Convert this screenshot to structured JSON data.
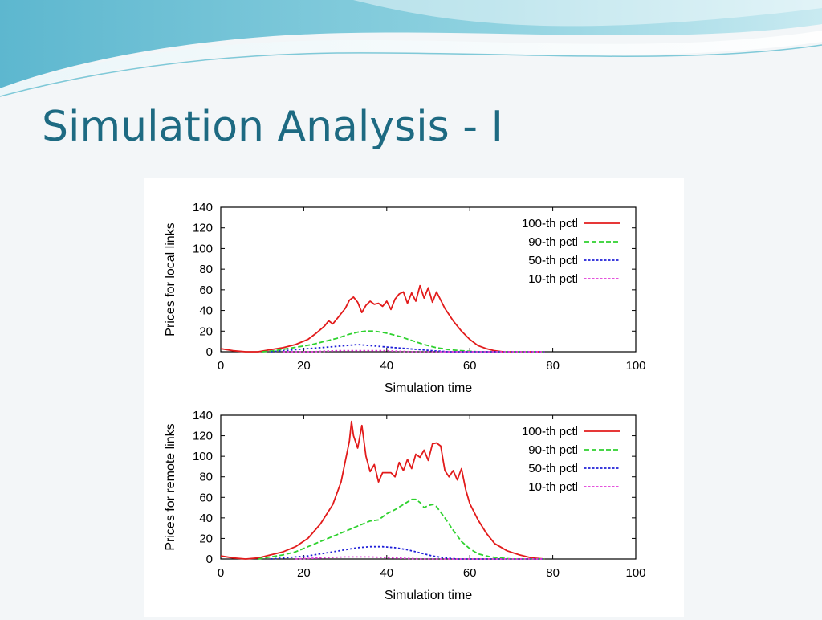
{
  "slide": {
    "title": "Simulation Analysis - I",
    "background_color": "#f3f6f8",
    "title_color": "#1d6a82",
    "banner_colors": [
      "#7fc9d8",
      "#b9e3ec",
      "#e7f5f8"
    ]
  },
  "chart_data": [
    {
      "type": "line",
      "xlabel": "Simulation time",
      "ylabel": "Prices for local links",
      "xlim": [
        0,
        100
      ],
      "ylim": [
        0,
        140
      ],
      "xticks": [
        0,
        20,
        40,
        60,
        80,
        100
      ],
      "yticks": [
        0,
        20,
        40,
        60,
        80,
        100,
        120,
        140
      ],
      "grid": false,
      "legend_position": "top-right",
      "series": [
        {
          "name": "100-th pctl",
          "color": "#e21b1b",
          "dash": "solid",
          "points": [
            [
              0,
              3
            ],
            [
              3,
              1
            ],
            [
              6,
              0
            ],
            [
              9,
              0
            ],
            [
              12,
              2
            ],
            [
              15,
              4
            ],
            [
              18,
              7
            ],
            [
              21,
              12
            ],
            [
              23,
              18
            ],
            [
              25,
              25
            ],
            [
              26,
              30
            ],
            [
              27,
              27
            ],
            [
              28,
              32
            ],
            [
              30,
              42
            ],
            [
              31,
              50
            ],
            [
              32,
              53
            ],
            [
              33,
              48
            ],
            [
              34,
              38
            ],
            [
              35,
              45
            ],
            [
              36,
              49
            ],
            [
              37,
              46
            ],
            [
              38,
              47
            ],
            [
              39,
              44
            ],
            [
              40,
              49
            ],
            [
              41,
              41
            ],
            [
              42,
              51
            ],
            [
              43,
              56
            ],
            [
              44,
              58
            ],
            [
              45,
              47
            ],
            [
              46,
              57
            ],
            [
              47,
              49
            ],
            [
              48,
              64
            ],
            [
              49,
              52
            ],
            [
              50,
              62
            ],
            [
              51,
              48
            ],
            [
              52,
              58
            ],
            [
              54,
              42
            ],
            [
              56,
              30
            ],
            [
              58,
              20
            ],
            [
              60,
              12
            ],
            [
              62,
              6
            ],
            [
              64,
              3
            ],
            [
              66,
              1
            ],
            [
              68,
              0
            ],
            [
              78,
              0
            ]
          ]
        },
        {
          "name": "90-th pctl",
          "color": "#2ed12e",
          "dash": "dashed",
          "points": [
            [
              10,
              0
            ],
            [
              13,
              1
            ],
            [
              16,
              3
            ],
            [
              19,
              5
            ],
            [
              22,
              7
            ],
            [
              25,
              10
            ],
            [
              28,
              13
            ],
            [
              31,
              17
            ],
            [
              33,
              19
            ],
            [
              35,
              20
            ],
            [
              37,
              20
            ],
            [
              40,
              18
            ],
            [
              43,
              15
            ],
            [
              46,
              11
            ],
            [
              49,
              7
            ],
            [
              52,
              4
            ],
            [
              55,
              2
            ],
            [
              58,
              1
            ],
            [
              62,
              0
            ],
            [
              78,
              0
            ]
          ]
        },
        {
          "name": "50-th pctl",
          "color": "#2020d8",
          "dash": "dotted",
          "points": [
            [
              12,
              0
            ],
            [
              15,
              1
            ],
            [
              18,
              2
            ],
            [
              21,
              3
            ],
            [
              24,
              4
            ],
            [
              27,
              5
            ],
            [
              30,
              6
            ],
            [
              33,
              7
            ],
            [
              36,
              6
            ],
            [
              39,
              5
            ],
            [
              42,
              4
            ],
            [
              45,
              3
            ],
            [
              48,
              2
            ],
            [
              51,
              1
            ],
            [
              55,
              0
            ],
            [
              78,
              0
            ]
          ]
        },
        {
          "name": "10-th pctl",
          "color": "#e03ad8",
          "dash": "dotted",
          "points": [
            [
              15,
              0
            ],
            [
              22,
              0
            ],
            [
              28,
              1
            ],
            [
              34,
              1
            ],
            [
              40,
              1
            ],
            [
              46,
              0
            ],
            [
              78,
              0
            ]
          ]
        }
      ]
    },
    {
      "type": "line",
      "xlabel": "Simulation time",
      "ylabel": "Prices for remote links",
      "xlim": [
        0,
        100
      ],
      "ylim": [
        0,
        140
      ],
      "xticks": [
        0,
        20,
        40,
        60,
        80,
        100
      ],
      "yticks": [
        0,
        20,
        40,
        60,
        80,
        100,
        120,
        140
      ],
      "grid": false,
      "legend_position": "top-right",
      "series": [
        {
          "name": "100-th pctl",
          "color": "#e21b1b",
          "dash": "solid",
          "points": [
            [
              0,
              3
            ],
            [
              3,
              1
            ],
            [
              6,
              0
            ],
            [
              9,
              1
            ],
            [
              12,
              4
            ],
            [
              15,
              7
            ],
            [
              18,
              12
            ],
            [
              21,
              20
            ],
            [
              24,
              34
            ],
            [
              27,
              53
            ],
            [
              29,
              75
            ],
            [
              30,
              95
            ],
            [
              31,
              115
            ],
            [
              31.5,
              134
            ],
            [
              32,
              120
            ],
            [
              33,
              108
            ],
            [
              34,
              130
            ],
            [
              35,
              100
            ],
            [
              36,
              85
            ],
            [
              37,
              92
            ],
            [
              38,
              75
            ],
            [
              39,
              84
            ],
            [
              40,
              84
            ],
            [
              41,
              84
            ],
            [
              42,
              80
            ],
            [
              43,
              94
            ],
            [
              44,
              86
            ],
            [
              45,
              97
            ],
            [
              46,
              88
            ],
            [
              47,
              102
            ],
            [
              48,
              99
            ],
            [
              49,
              106
            ],
            [
              50,
              96
            ],
            [
              51,
              112
            ],
            [
              52,
              113
            ],
            [
              53,
              110
            ],
            [
              54,
              86
            ],
            [
              55,
              80
            ],
            [
              56,
              86
            ],
            [
              57,
              77
            ],
            [
              58,
              88
            ],
            [
              59,
              68
            ],
            [
              60,
              54
            ],
            [
              62,
              38
            ],
            [
              64,
              25
            ],
            [
              66,
              15
            ],
            [
              69,
              8
            ],
            [
              72,
              4
            ],
            [
              75,
              1
            ],
            [
              78,
              0
            ]
          ]
        },
        {
          "name": "90-th pctl",
          "color": "#2ed12e",
          "dash": "dashed",
          "points": [
            [
              9,
              0
            ],
            [
              12,
              2
            ],
            [
              15,
              4
            ],
            [
              18,
              7
            ],
            [
              21,
              12
            ],
            [
              24,
              17
            ],
            [
              27,
              22
            ],
            [
              30,
              27
            ],
            [
              33,
              32
            ],
            [
              36,
              37
            ],
            [
              38,
              38
            ],
            [
              40,
              44
            ],
            [
              42,
              48
            ],
            [
              44,
              53
            ],
            [
              46,
              58
            ],
            [
              47,
              58
            ],
            [
              48,
              55
            ],
            [
              49,
              50
            ],
            [
              50,
              52
            ],
            [
              51,
              53
            ],
            [
              52,
              51
            ],
            [
              54,
              40
            ],
            [
              56,
              28
            ],
            [
              58,
              17
            ],
            [
              60,
              10
            ],
            [
              62,
              5
            ],
            [
              65,
              2
            ],
            [
              70,
              0
            ],
            [
              78,
              0
            ]
          ]
        },
        {
          "name": "50-th pctl",
          "color": "#2020d8",
          "dash": "dotted",
          "points": [
            [
              12,
              0
            ],
            [
              15,
              1
            ],
            [
              18,
              2
            ],
            [
              21,
              3
            ],
            [
              24,
              5
            ],
            [
              27,
              7
            ],
            [
              30,
              9
            ],
            [
              33,
              11
            ],
            [
              36,
              12
            ],
            [
              39,
              12
            ],
            [
              42,
              11
            ],
            [
              45,
              9
            ],
            [
              48,
              6
            ],
            [
              51,
              3
            ],
            [
              54,
              1
            ],
            [
              57,
              0
            ],
            [
              78,
              0
            ]
          ]
        },
        {
          "name": "10-th pctl",
          "color": "#e03ad8",
          "dash": "dotted",
          "points": [
            [
              18,
              0
            ],
            [
              24,
              1
            ],
            [
              30,
              2
            ],
            [
              36,
              2
            ],
            [
              42,
              1
            ],
            [
              48,
              0
            ],
            [
              78,
              0
            ]
          ]
        }
      ]
    }
  ]
}
